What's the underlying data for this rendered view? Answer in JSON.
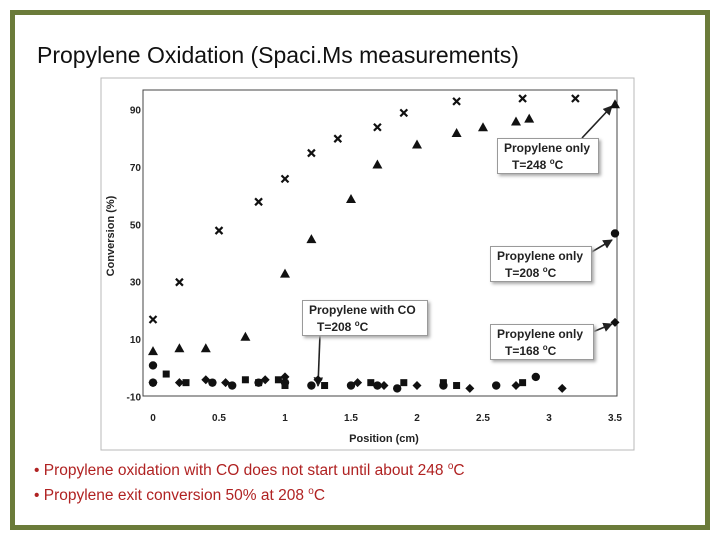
{
  "slide": {
    "title": "Propylene Oxidation (Spaci.Ms measurements)",
    "bullets": [
      "• Propylene oxidation with CO does not start until about 248 ",
      "• Propylene exit conversion 50% at 208 "
    ],
    "bullet_suffix": [
      "C",
      "C"
    ],
    "bullet_sup": [
      "o",
      "o"
    ]
  },
  "colors": {
    "frame": "#6b7b3a",
    "bullet_text": "#b02222",
    "marker": "#111111"
  },
  "annotations": [
    {
      "line1": "Propylene only",
      "line2": "T=248 ",
      "sup": "o",
      "unit": "C"
    },
    {
      "line1": "Propylene only",
      "line2": "T=208 ",
      "sup": "o",
      "unit": "C"
    },
    {
      "line1": "Propylene with CO",
      "line2": "T=208 ",
      "sup": "o",
      "unit": "C"
    },
    {
      "line1": "Propylene only",
      "line2": "T=168 ",
      "sup": "o",
      "unit": "C"
    }
  ],
  "chart_data": {
    "type": "scatter",
    "xlabel": "Position (cm)",
    "ylabel": "Conversion (%)",
    "xlim": [
      0,
      3.5
    ],
    "ylim": [
      -10,
      95
    ],
    "xticks": [
      0,
      0.5,
      1,
      1.5,
      2,
      2.5,
      3,
      3.5
    ],
    "xtick_labels": [
      "0",
      "0.5",
      "1",
      "1.5",
      "2",
      "2.5",
      "3",
      "3.5"
    ],
    "yticks": [
      -10,
      10,
      30,
      50,
      70,
      90
    ],
    "ytick_labels": [
      "-10",
      "10",
      "30",
      "50",
      "70",
      "90"
    ],
    "grid": false,
    "series": [
      {
        "marker": "x",
        "x": [
          0,
          0.2,
          0.5,
          0.8,
          1.0,
          1.2,
          1.4,
          1.7,
          1.9,
          2.3,
          2.8,
          3.2
        ],
        "y": [
          17,
          30,
          48,
          58,
          66,
          75,
          80,
          84,
          89,
          93,
          94,
          94
        ]
      },
      {
        "marker": "triangle",
        "x": [
          0,
          0.2,
          0.4,
          0.7,
          1.0,
          1.2,
          1.5,
          1.7,
          2.0,
          2.3,
          2.5,
          2.75,
          2.85,
          3.5
        ],
        "y": [
          6,
          7,
          7,
          11,
          33,
          45,
          59,
          71,
          78,
          82,
          84,
          86,
          87,
          92
        ]
      },
      {
        "marker": "circle",
        "x": [
          0,
          0,
          0.45,
          0.6,
          0.8,
          1.0,
          1.2,
          1.5,
          1.7,
          1.85,
          2.2,
          2.6,
          2.9,
          3.5
        ],
        "y": [
          -5,
          1,
          -5,
          -6,
          -5,
          -5,
          -6,
          -6,
          -6,
          -7,
          -6,
          -6,
          -3,
          47
        ]
      },
      {
        "marker": "square",
        "x": [
          0.1,
          0.25,
          0.7,
          0.8,
          0.95,
          1.0,
          1.3,
          1.65,
          1.9,
          2.2,
          2.3,
          2.8
        ],
        "y": [
          -2,
          -5,
          -4,
          -5,
          -4,
          -6,
          -6,
          -5,
          -5,
          -5,
          -6,
          -5
        ]
      },
      {
        "marker": "diamond",
        "x": [
          0,
          0.2,
          0.4,
          0.55,
          0.85,
          1.0,
          1.25,
          1.55,
          1.75,
          2.0,
          2.4,
          2.75,
          3.1,
          3.5
        ],
        "y": [
          -5,
          -5,
          -4,
          -5,
          -4,
          -3,
          -4,
          -5,
          -6,
          -6,
          -7,
          -6,
          -7,
          16
        ]
      }
    ]
  }
}
